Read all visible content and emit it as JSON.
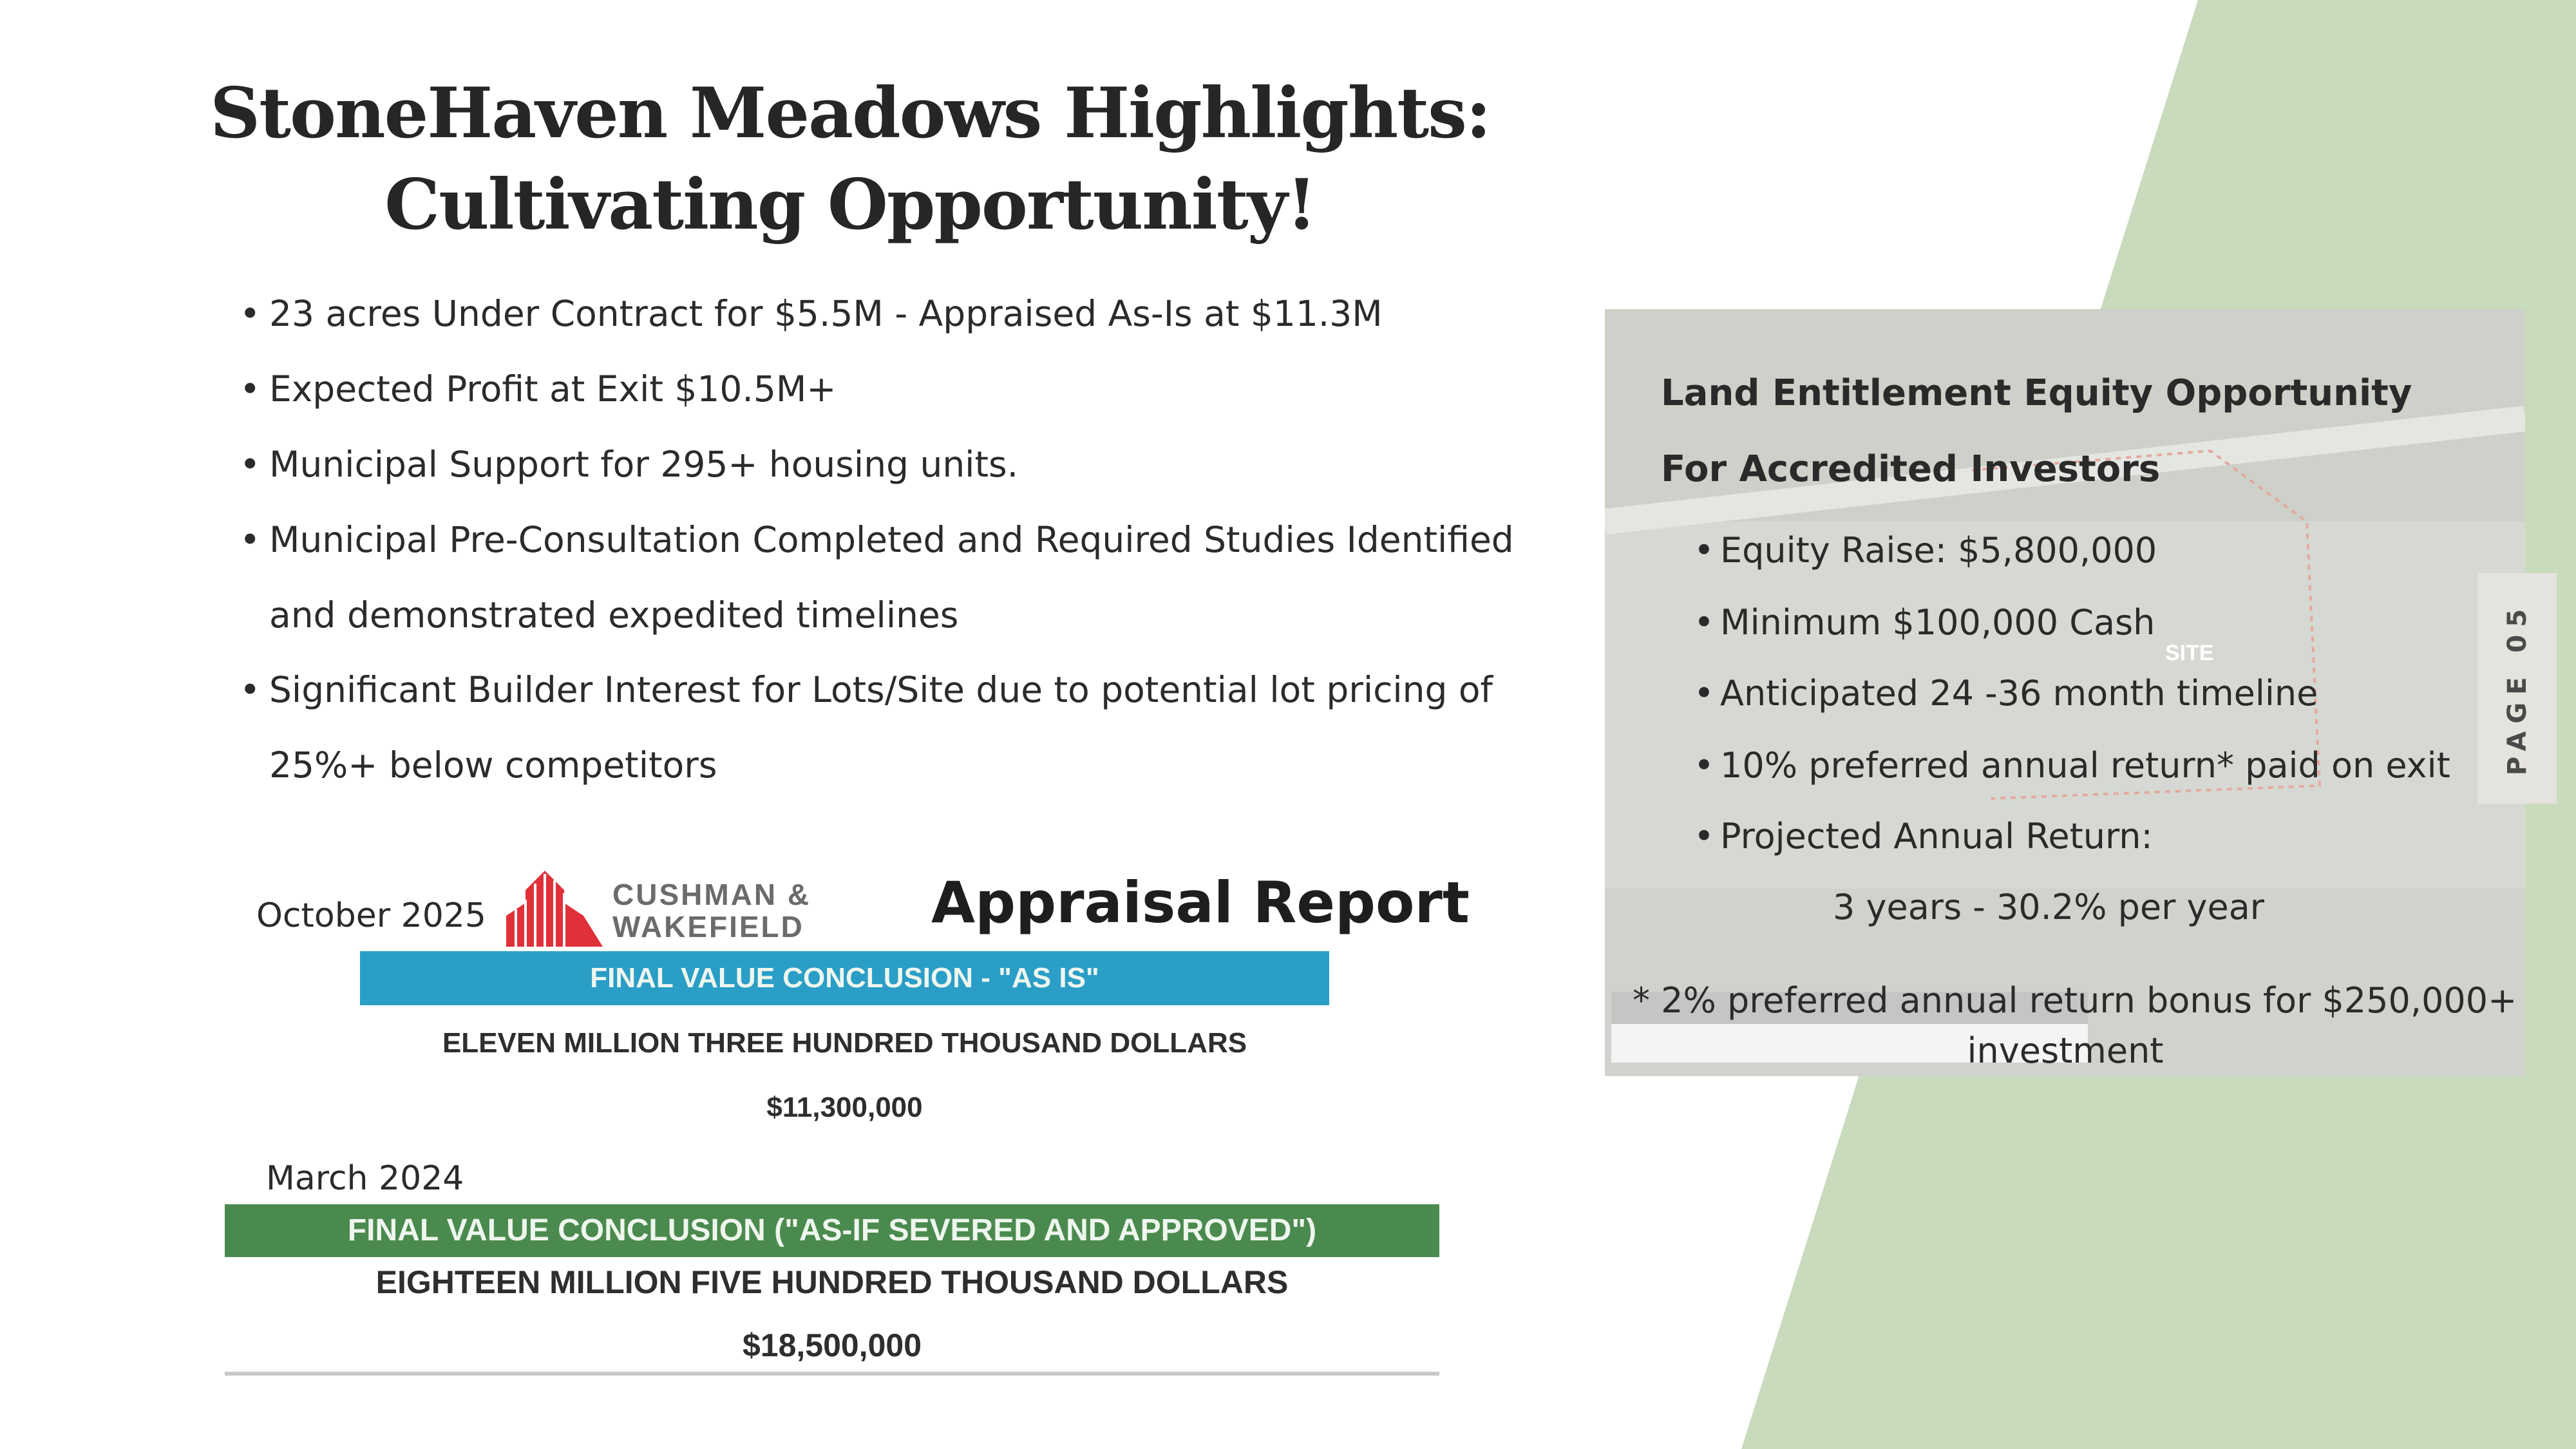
{
  "colors": {
    "green_shape": "#c8dbbd",
    "panel": "#d6d9d3",
    "blue_bar": "#2a9ec6",
    "green_bar": "#4b8a4e",
    "logo_red": "#e0303a"
  },
  "title": {
    "line1": "StoneHaven Meadows Highlights:",
    "line2": "Cultivating Opportunity!"
  },
  "highlights": [
    "23 acres Under Contract for $5.5M - Appraised As-Is at $11.3M",
    "Expected Profit at Exit $10.5M+",
    "Municipal Support for 295+ housing units.",
    "Municipal Pre-Consultation Completed and Required Studies Identified",
    "Significant Builder Interest for Lots/Site due to potential lot pricing of"
  ],
  "highlight_continuations": {
    "3": "and demonstrated expedited timelines",
    "4": "25%+ below competitors"
  },
  "appraisal": {
    "date1": "October 2025",
    "logo_line1": "CUSHMAN &",
    "logo_line2": "WAKEFIELD",
    "heading": "Appraisal Report",
    "bar1": "FINAL VALUE CONCLUSION - \"AS IS\"",
    "words1": "ELEVEN MILLION THREE HUNDRED THOUSAND DOLLARS",
    "amount1": "$11,300,000",
    "date2": "March 2024",
    "bar2": "FINAL VALUE CONCLUSION (\"AS-IF SEVERED AND APPROVED\")",
    "words2": "EIGHTEEN MILLION FIVE HUNDRED THOUSAND DOLLARS",
    "amount2": "$18,500,000"
  },
  "panel": {
    "heading1": "Land Entitlement Equity Opportunity",
    "heading2": "For Accredited Investors",
    "items": [
      "Equity Raise: $5,800,000",
      "Minimum $100,000 Cash",
      "Anticipated 24 -36 month timeline",
      "10% preferred annual return* paid on exit",
      "Projected Annual Return:"
    ],
    "projection": "3 years - 30.2% per year",
    "footnote_line1": "* 2% preferred annual return bonus for $250,000+",
    "footnote_line2": "investment",
    "map_label": "SITE"
  },
  "page_tab": "PAGE 05"
}
